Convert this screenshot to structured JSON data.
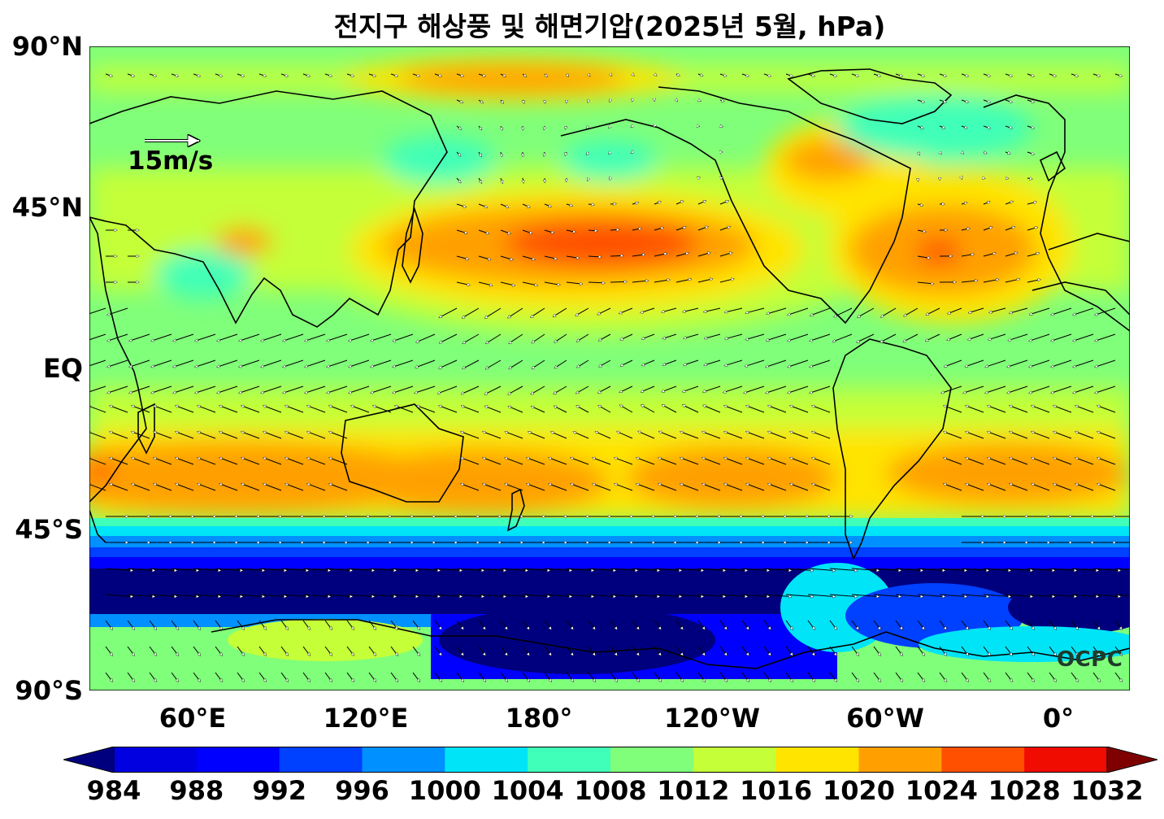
{
  "title": "전지구 해상풍 및 해면기압(2025년 5월, hPa)",
  "y_axis_labels": [
    "90°N",
    "45°N",
    "EQ",
    "45°S",
    "90°S"
  ],
  "x_axis_labels": [
    "60°E",
    "120°E",
    "180°",
    "120°W",
    "60°W",
    "0°"
  ],
  "reference_vector_label": "15m/s",
  "logo_text": "OCPC",
  "colorbar": {
    "tick_labels": [
      "984",
      "988",
      "992",
      "996",
      "1000",
      "1004",
      "1008",
      "1012",
      "1016",
      "1020",
      "1024",
      "1028",
      "1032"
    ],
    "colors": [
      "#00007f",
      "#0000e0",
      "#0000ff",
      "#0040ff",
      "#0090ff",
      "#00e4f8",
      "#40ffb8",
      "#80ff7a",
      "#c4ff38",
      "#ffe400",
      "#ffa000",
      "#ff5000",
      "#f00c00",
      "#7f0000"
    ]
  }
}
